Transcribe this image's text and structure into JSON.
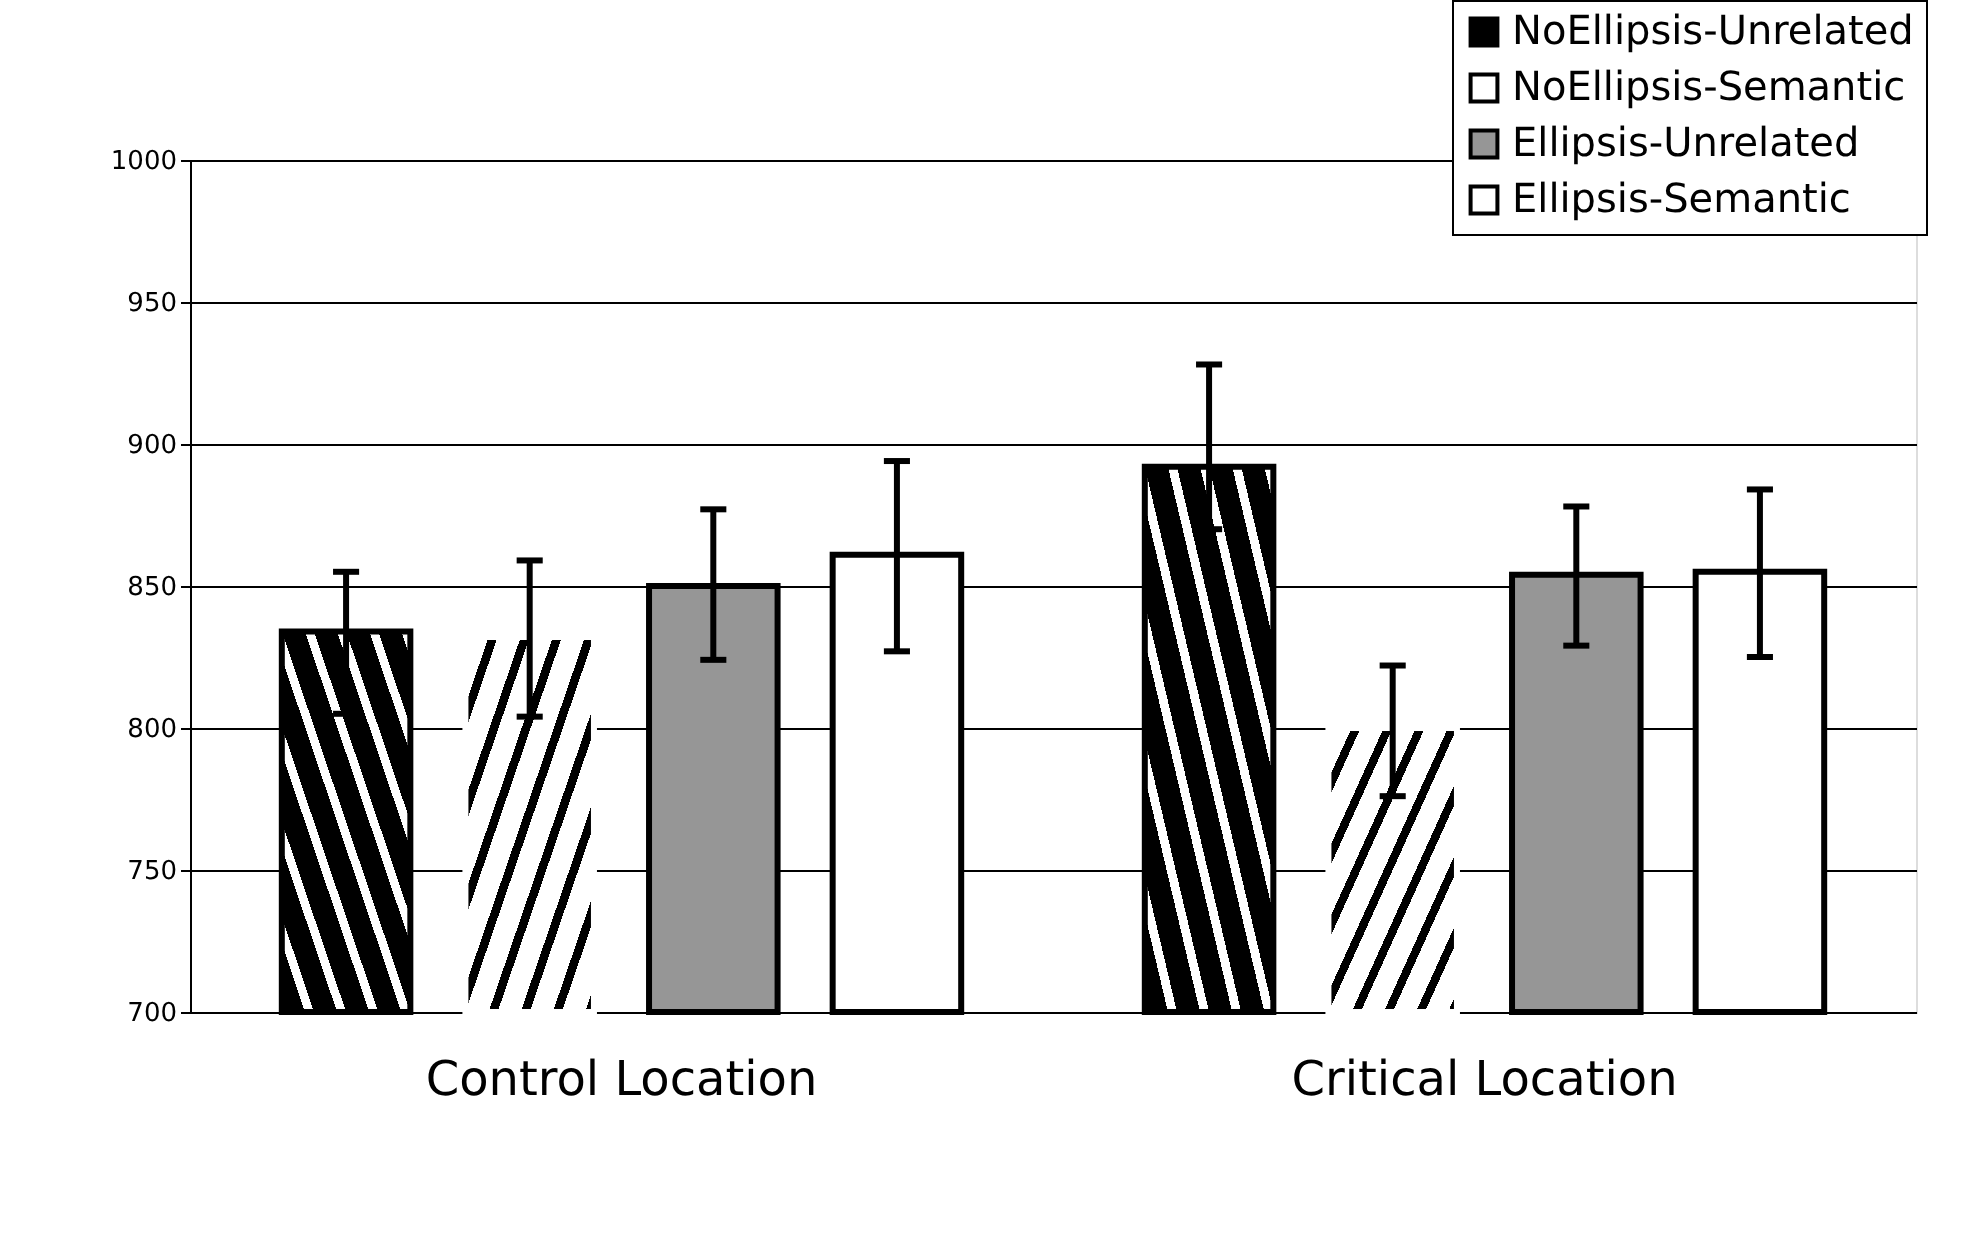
{
  "chart_data": {
    "type": "bar",
    "categories": [
      "Control Location",
      "Critical Location"
    ],
    "ylim": [
      700,
      1000
    ],
    "yticks": [
      700,
      750,
      800,
      850,
      900,
      950,
      1000
    ],
    "grid": "y",
    "legend": "top right",
    "series": [
      {
        "name": "NoEllipsis-Unrelated",
        "color": "#000000",
        "values": [
          834,
          892
        ],
        "errors": [
          [
            805,
            855
          ],
          [
            870,
            928
          ]
        ]
      },
      {
        "name": "NoEllipsis-Semantic",
        "color": "#ffffff",
        "values": [
          832,
          800
        ],
        "errors": [
          [
            804,
            859
          ],
          [
            776,
            822
          ]
        ]
      },
      {
        "name": "Ellipsis-Unrelated",
        "color": "#969696",
        "values": [
          850,
          854
        ],
        "errors": [
          [
            824,
            877
          ],
          [
            829,
            878
          ]
        ]
      },
      {
        "name": "Ellipsis-Semantic",
        "color": "#ffffff",
        "values": [
          861,
          855
        ],
        "errors": [
          [
            827,
            894
          ],
          [
            825,
            884
          ]
        ]
      }
    ]
  }
}
